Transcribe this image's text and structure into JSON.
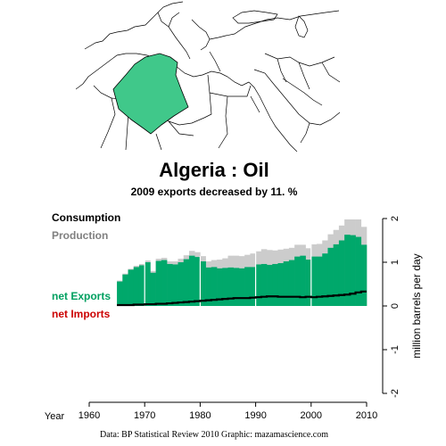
{
  "header": {
    "title": "Algeria :  Oil",
    "subtitle": "2009 exports decreased by 11. %"
  },
  "legend": {
    "consumption": "Consumption",
    "production": "Production",
    "net_exports": "net Exports",
    "net_imports": "net Imports"
  },
  "footer": {
    "credit": "Data: BP Statistical Review 2010    Graphic: mazamascience.com"
  },
  "colors": {
    "production": "#cccccc",
    "exports": "#00a86b",
    "imports": "#cc0000",
    "consumption": "#000000",
    "highlight_country": "#40c88a",
    "production_label": "#808080",
    "exports_label": "#00a060",
    "imports_label": "#cc0000"
  },
  "chart_data": {
    "type": "area",
    "xlabel": "Year",
    "ylabel": "million barrels per day",
    "x_ticks": [
      1960,
      1970,
      1980,
      1990,
      2000,
      2010
    ],
    "y_ticks": [
      -2,
      -1,
      0,
      1,
      2
    ],
    "xlim": [
      1960,
      2010
    ],
    "ylim": [
      -2,
      2
    ],
    "y_axis_side": "right",
    "grid": false,
    "legend_position": "left",
    "series": [
      {
        "name": "Production",
        "x": [
          1965,
          1966,
          1967,
          1968,
          1969,
          1970,
          1971,
          1972,
          1973,
          1974,
          1975,
          1976,
          1977,
          1978,
          1979,
          1980,
          1981,
          1982,
          1983,
          1984,
          1985,
          1986,
          1987,
          1988,
          1989,
          1990,
          1991,
          1992,
          1993,
          1994,
          1995,
          1996,
          1997,
          1998,
          1999,
          2000,
          2001,
          2002,
          2003,
          2004,
          2005,
          2006,
          2007,
          2008,
          2009
        ],
        "values": [
          0.58,
          0.74,
          0.85,
          0.92,
          0.96,
          1.04,
          0.8,
          1.08,
          1.1,
          1.02,
          1.02,
          1.08,
          1.16,
          1.26,
          1.23,
          1.14,
          1.02,
          1.05,
          1.06,
          1.09,
          1.15,
          1.15,
          1.14,
          1.17,
          1.2,
          1.25,
          1.3,
          1.28,
          1.27,
          1.29,
          1.31,
          1.33,
          1.4,
          1.4,
          1.32,
          1.41,
          1.42,
          1.5,
          1.64,
          1.74,
          1.84,
          1.98,
          1.98,
          1.98,
          1.81
        ]
      },
      {
        "name": "Consumption",
        "x": [
          1965,
          1966,
          1967,
          1968,
          1969,
          1970,
          1971,
          1972,
          1973,
          1974,
          1975,
          1976,
          1977,
          1978,
          1979,
          1980,
          1981,
          1982,
          1983,
          1984,
          1985,
          1986,
          1987,
          1988,
          1989,
          1990,
          1991,
          1992,
          1993,
          1994,
          1995,
          1996,
          1997,
          1998,
          1999,
          2000,
          2001,
          2002,
          2003,
          2004,
          2005,
          2006,
          2007,
          2008,
          2009
        ],
        "values": [
          0.02,
          0.02,
          0.02,
          0.03,
          0.03,
          0.04,
          0.04,
          0.05,
          0.05,
          0.06,
          0.07,
          0.08,
          0.09,
          0.1,
          0.11,
          0.12,
          0.13,
          0.14,
          0.15,
          0.16,
          0.17,
          0.18,
          0.18,
          0.18,
          0.19,
          0.2,
          0.21,
          0.22,
          0.22,
          0.21,
          0.21,
          0.21,
          0.21,
          0.2,
          0.21,
          0.2,
          0.21,
          0.22,
          0.23,
          0.24,
          0.25,
          0.26,
          0.28,
          0.31,
          0.33
        ]
      },
      {
        "name": "net Exports",
        "x": [
          1965,
          1966,
          1967,
          1968,
          1969,
          1970,
          1971,
          1972,
          1973,
          1974,
          1975,
          1976,
          1977,
          1978,
          1979,
          1980,
          1981,
          1982,
          1983,
          1984,
          1985,
          1986,
          1987,
          1988,
          1989,
          1990,
          1991,
          1992,
          1993,
          1994,
          1995,
          1996,
          1997,
          1998,
          1999,
          2000,
          2001,
          2002,
          2003,
          2004,
          2005,
          2006,
          2007,
          2008,
          2009
        ],
        "values": [
          0.56,
          0.72,
          0.83,
          0.89,
          0.93,
          1.0,
          0.76,
          1.03,
          1.05,
          0.96,
          0.95,
          1.0,
          1.07,
          1.15,
          1.12,
          1.02,
          0.88,
          0.89,
          0.86,
          0.87,
          0.88,
          0.87,
          0.86,
          0.89,
          0.89,
          0.95,
          0.96,
          0.94,
          0.96,
          0.98,
          1.02,
          1.05,
          1.13,
          1.15,
          1.06,
          1.13,
          1.13,
          1.2,
          1.33,
          1.41,
          1.5,
          1.63,
          1.62,
          1.58,
          1.4
        ]
      }
    ]
  }
}
